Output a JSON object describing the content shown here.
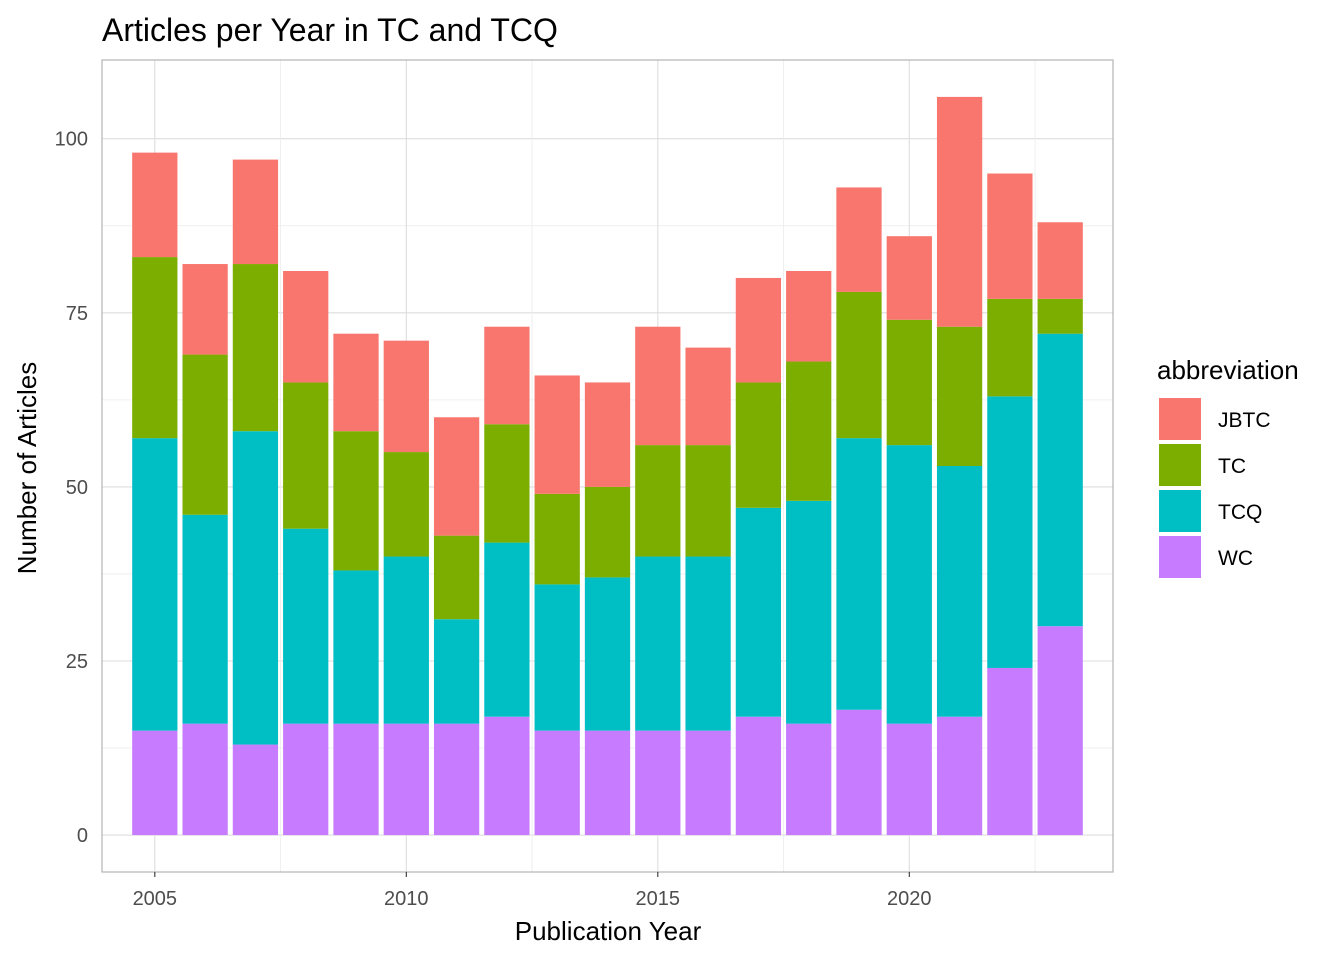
{
  "chart_data": {
    "type": "bar",
    "stacked": true,
    "title": "Articles per Year in TC and TCQ",
    "xlabel": "Publication Year",
    "ylabel": "Number of Articles",
    "x": [
      2005,
      2006,
      2007,
      2008,
      2009,
      2010,
      2011,
      2012,
      2013,
      2014,
      2015,
      2016,
      2017,
      2018,
      2019,
      2020,
      2021,
      2022,
      2023
    ],
    "xlim": [
      2003.95,
      2024.05
    ],
    "ylim": [
      -5.3,
      111.3
    ],
    "x_ticks": [
      2005,
      2010,
      2015,
      2020
    ],
    "x_tick_labels": [
      "2005",
      "2010",
      "2015",
      "2020"
    ],
    "y_ticks": [
      0,
      25,
      50,
      75,
      100
    ],
    "y_tick_labels": [
      "0",
      "25",
      "50",
      "75",
      "100"
    ],
    "grid": true,
    "legend": {
      "title": "abbreviation",
      "position": "right"
    },
    "series": [
      {
        "name": "WC",
        "color": "#C77CFF",
        "values": [
          15,
          16,
          13,
          16,
          16,
          16,
          16,
          17,
          15,
          15,
          15,
          15,
          17,
          16,
          18,
          16,
          17,
          24,
          30
        ]
      },
      {
        "name": "TCQ",
        "color": "#00BFC4",
        "values": [
          42,
          30,
          45,
          28,
          22,
          24,
          15,
          25,
          21,
          22,
          25,
          25,
          30,
          32,
          39,
          40,
          36,
          39,
          42
        ]
      },
      {
        "name": "TC",
        "color": "#7CAE00",
        "values": [
          26,
          23,
          24,
          21,
          20,
          15,
          12,
          17,
          13,
          13,
          16,
          16,
          18,
          20,
          21,
          18,
          20,
          14,
          5
        ]
      },
      {
        "name": "JBTC",
        "color": "#F8766D",
        "values": [
          15,
          13,
          15,
          16,
          14,
          16,
          17,
          14,
          17,
          15,
          17,
          14,
          15,
          13,
          15,
          12,
          33,
          18,
          11
        ]
      }
    ],
    "legend_order": [
      "JBTC",
      "TC",
      "TCQ",
      "WC"
    ]
  }
}
